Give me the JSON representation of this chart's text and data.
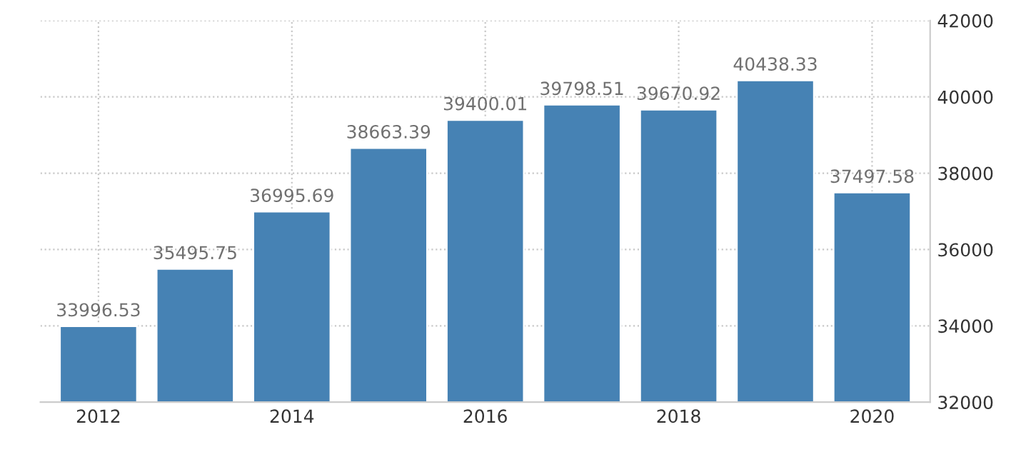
{
  "chart_data": {
    "type": "bar",
    "x": [
      2012,
      2013,
      2014,
      2015,
      2016,
      2017,
      2018,
      2019,
      2020
    ],
    "values": [
      33996.53,
      35495.75,
      36995.69,
      38663.39,
      39400.01,
      39798.51,
      39670.92,
      40438.33,
      37497.58
    ],
    "color": "#4682b4",
    "data_labels": true,
    "xlim": [
      2011.4,
      2020.6
    ],
    "xticks": [
      2012,
      2014,
      2016,
      2018,
      2020
    ],
    "ylim": [
      32000,
      42000
    ],
    "yticks": [
      32000,
      34000,
      36000,
      38000,
      40000,
      42000
    ],
    "grid": true
  }
}
